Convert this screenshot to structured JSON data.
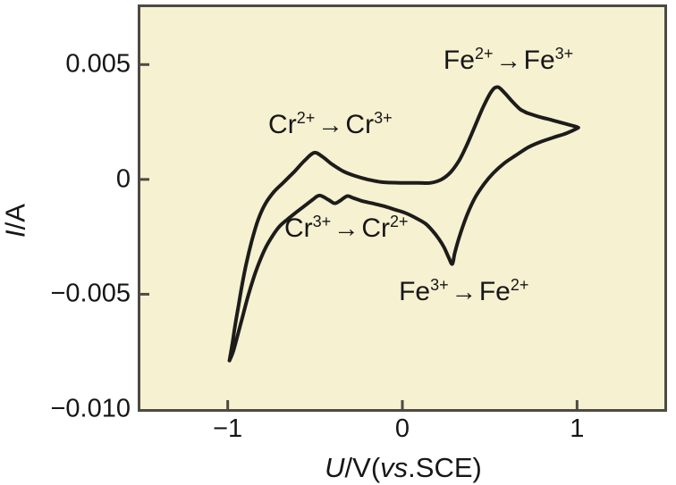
{
  "figure": {
    "background": "#ffffff",
    "plot_background": "#f5f1d1",
    "border_color": "#4b4a44",
    "curve_color": "#1d1c1a",
    "text_color": "#161616"
  },
  "chart_data": {
    "type": "line",
    "title": "",
    "xlabel": "U/V(vs.SCE)",
    "ylabel": "I/A",
    "xlabel_parts": {
      "sym": "U",
      "mid": "/V(",
      "vs": "vs",
      "rest": ".SCE)"
    },
    "ylabel_parts": {
      "sym": "I",
      "rest": "/A"
    },
    "xlim": [
      -1.5,
      1.5
    ],
    "ylim": [
      -0.01,
      0.0075
    ],
    "grid": false,
    "legend": "none",
    "x_ticks": [
      {
        "label": "−1",
        "value": -1
      },
      {
        "label": "0",
        "value": 0
      },
      {
        "label": "1",
        "value": 1
      }
    ],
    "y_ticks": [
      {
        "label": "0.005",
        "value": 0.005
      },
      {
        "label": "0",
        "value": 0
      },
      {
        "label": "−0.005",
        "value": -0.005
      },
      {
        "label": "−0.010",
        "value": -0.01
      }
    ],
    "series": [
      {
        "name": "cyclic-voltammogram-loop",
        "points": [
          [
            -0.99,
            -0.00789
          ],
          [
            -0.974,
            -0.00719
          ],
          [
            -0.959,
            -0.00642
          ],
          [
            -0.939,
            -0.00553
          ],
          [
            -0.918,
            -0.0046
          ],
          [
            -0.893,
            -0.00364
          ],
          [
            -0.862,
            -0.00267
          ],
          [
            -0.827,
            -0.00178
          ],
          [
            -0.786,
            -0.00108
          ],
          [
            -0.735,
            -0.00054
          ],
          [
            -0.679,
            -0.00012
          ],
          [
            -0.617,
            0.00035
          ],
          [
            -0.561,
            0.00081
          ],
          [
            -0.505,
            0.00116
          ],
          [
            -0.454,
            0.00097
          ],
          [
            -0.403,
            0.00066
          ],
          [
            -0.337,
            0.00035
          ],
          [
            -0.27,
            0.00015
          ],
          [
            -0.199,
            0.0
          ],
          [
            -0.117,
            -0.00012
          ],
          [
            -0.015,
            -0.00015
          ],
          [
            0.087,
            -0.00015
          ],
          [
            0.163,
            -0.00015
          ],
          [
            0.224,
            0.0
          ],
          [
            0.276,
            0.00031
          ],
          [
            0.327,
            0.00085
          ],
          [
            0.372,
            0.00155
          ],
          [
            0.418,
            0.00236
          ],
          [
            0.464,
            0.00317
          ],
          [
            0.51,
            0.00383
          ],
          [
            0.546,
            0.00402
          ],
          [
            0.587,
            0.00375
          ],
          [
            0.628,
            0.0034
          ],
          [
            0.673,
            0.00306
          ],
          [
            0.699,
            0.00295
          ],
          [
            0.719,
            0.00288
          ],
          [
            0.786,
            0.00272
          ],
          [
            0.862,
            0.00257
          ],
          [
            0.934,
            0.00242
          ],
          [
            1.0,
            0.00228
          ],
          [
            1.0,
            0.00222
          ],
          [
            0.939,
            0.00201
          ],
          [
            0.862,
            0.00182
          ],
          [
            0.786,
            0.00162
          ],
          [
            0.719,
            0.00139
          ],
          [
            0.648,
            0.00104
          ],
          [
            0.582,
            0.0007
          ],
          [
            0.52,
            0.00027
          ],
          [
            0.469,
            -0.00019
          ],
          [
            0.418,
            -0.00077
          ],
          [
            0.372,
            -0.00151
          ],
          [
            0.332,
            -0.00236
          ],
          [
            0.301,
            -0.00317
          ],
          [
            0.286,
            -0.00368
          ],
          [
            0.265,
            -0.0034
          ],
          [
            0.24,
            -0.00298
          ],
          [
            0.209,
            -0.00259
          ],
          [
            0.173,
            -0.00224
          ],
          [
            0.133,
            -0.00193
          ],
          [
            0.082,
            -0.0017
          ],
          [
            0.02,
            -0.00147
          ],
          [
            -0.041,
            -0.00132
          ],
          [
            -0.107,
            -0.00116
          ],
          [
            -0.173,
            -0.00104
          ],
          [
            -0.235,
            -0.00093
          ],
          [
            -0.281,
            -0.00081
          ],
          [
            -0.316,
            -0.00073
          ],
          [
            -0.357,
            -0.00093
          ],
          [
            -0.388,
            -0.00104
          ],
          [
            -0.423,
            -0.00089
          ],
          [
            -0.474,
            -0.0007
          ],
          [
            -0.515,
            -0.00089
          ],
          [
            -0.561,
            -0.00116
          ],
          [
            -0.607,
            -0.00143
          ],
          [
            -0.658,
            -0.00174
          ],
          [
            -0.704,
            -0.00205
          ],
          [
            -0.745,
            -0.00248
          ],
          [
            -0.786,
            -0.00302
          ],
          [
            -0.821,
            -0.00364
          ],
          [
            -0.852,
            -0.00429
          ],
          [
            -0.883,
            -0.00507
          ],
          [
            -0.913,
            -0.00592
          ],
          [
            -0.944,
            -0.00681
          ],
          [
            -0.969,
            -0.0075
          ],
          [
            -0.99,
            -0.00789
          ]
        ]
      }
    ],
    "annotations": [
      {
        "id": "cr-oxidation",
        "el1": "Cr",
        "sup1": "2+",
        "arrow": "→",
        "el2": "Cr",
        "sup2": "3+",
        "x": -0.413,
        "y": 0.00237
      },
      {
        "id": "fe-oxidation",
        "el1": "Fe",
        "sup1": "2+",
        "arrow": "→",
        "el2": "Fe",
        "sup2": "3+",
        "x": 0.607,
        "y": 0.00517
      },
      {
        "id": "cr-reduction",
        "el1": "Cr",
        "sup1": "3+",
        "arrow": "→",
        "el2": "Cr",
        "sup2": "2+",
        "x": -0.321,
        "y": -0.00215
      },
      {
        "id": "fe-reduction",
        "el1": "Fe",
        "sup1": "3+",
        "arrow": "→",
        "el2": "Fe",
        "sup2": "2+",
        "x": 0.352,
        "y": -0.00491
      }
    ]
  }
}
